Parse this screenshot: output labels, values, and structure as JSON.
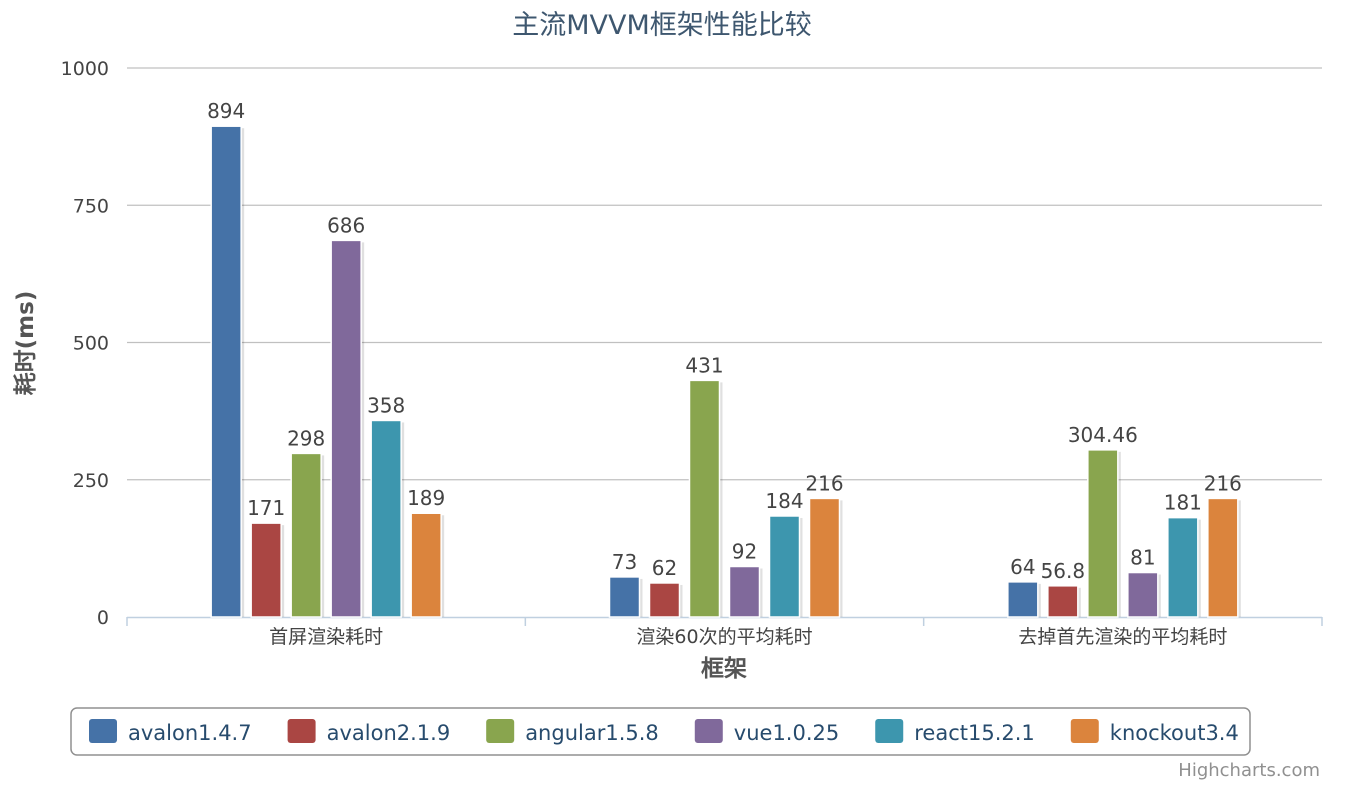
{
  "chart_data": {
    "type": "bar",
    "title": "主流MVVM框架性能比较",
    "xlabel": "框架",
    "ylabel": "耗时(ms)",
    "ylim": [
      0,
      1000
    ],
    "yticks": [
      0,
      250,
      500,
      750,
      1000
    ],
    "grid": true,
    "legend_position": "bottom",
    "categories": [
      "首屏渲染耗时",
      "渲染60次的平均耗时",
      "去掉首先渲染的平均耗时"
    ],
    "series": [
      {
        "name": "avalon1.4.7",
        "color": "#4572a7",
        "values": [
          894,
          73,
          64
        ]
      },
      {
        "name": "avalon2.1.9",
        "color": "#aa4643",
        "values": [
          171,
          62,
          56.8
        ]
      },
      {
        "name": "angular1.5.8",
        "color": "#89a54e",
        "values": [
          298,
          431,
          304.46
        ]
      },
      {
        "name": "vue1.0.25",
        "color": "#80699b",
        "values": [
          686,
          92,
          81
        ]
      },
      {
        "name": "react15.2.1",
        "color": "#3d96ae",
        "values": [
          358,
          184,
          181
        ]
      },
      {
        "name": "knockout3.4",
        "color": "#db843d",
        "values": [
          189,
          216,
          216
        ]
      }
    ],
    "credits": "Highcharts.com"
  }
}
